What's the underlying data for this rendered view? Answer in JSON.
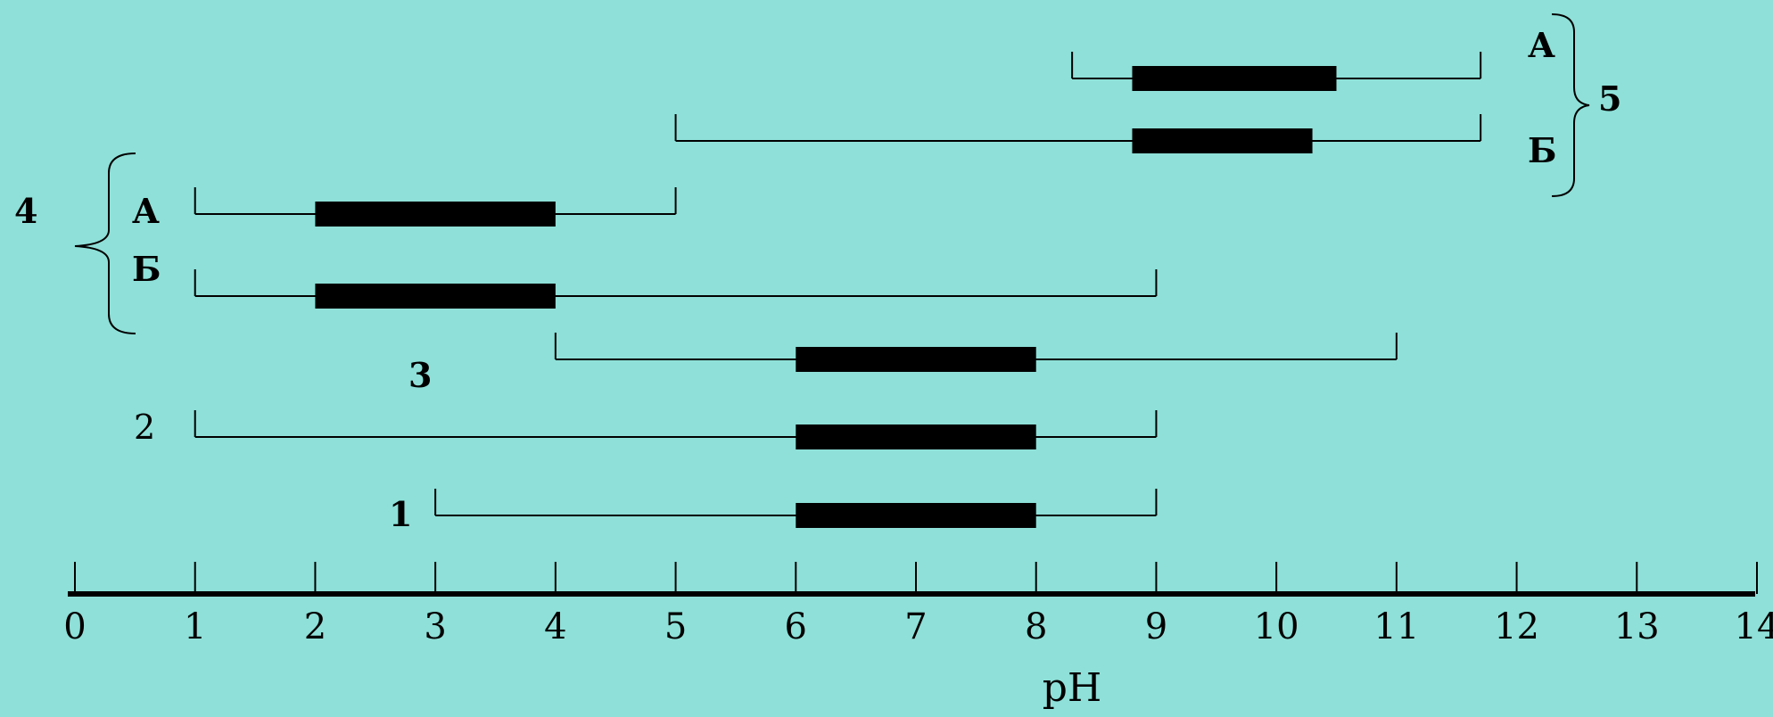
{
  "chart_data": {
    "type": "range",
    "xlabel": "pH",
    "xlim": [
      0,
      14
    ],
    "ticks": [
      "0",
      "1",
      "2",
      "3",
      "4",
      "5",
      "6",
      "7",
      "8",
      "9",
      "10",
      "11",
      "12",
      "13",
      "14"
    ],
    "grid": false,
    "colors": {
      "background": "#8ee0d8",
      "ink": "#000000"
    },
    "groups": [
      {
        "label": "5",
        "bracket": "right"
      },
      {
        "label": "4",
        "bracket": "left"
      }
    ],
    "series": [
      {
        "label": "А",
        "group": "5",
        "range": [
          8.3,
          11.7
        ],
        "optimum": [
          8.8,
          10.5
        ]
      },
      {
        "label": "Б",
        "group": "5",
        "range": [
          5.0,
          11.7
        ],
        "optimum": [
          8.8,
          10.3
        ]
      },
      {
        "label": "А",
        "group": "4",
        "range": [
          1.0,
          5.0
        ],
        "optimum": [
          2.0,
          4.0
        ]
      },
      {
        "label": "Б",
        "group": "4",
        "range": [
          1.0,
          9.0
        ],
        "optimum": [
          2.0,
          4.0
        ]
      },
      {
        "label": "3",
        "group": null,
        "range": [
          4.0,
          11.0
        ],
        "optimum": [
          6.0,
          8.0
        ]
      },
      {
        "label": "2",
        "group": null,
        "range": [
          1.0,
          9.0
        ],
        "optimum": [
          6.0,
          8.0
        ]
      },
      {
        "label": "1",
        "group": null,
        "range": [
          3.0,
          9.0
        ],
        "optimum": [
          6.0,
          8.0
        ]
      }
    ]
  }
}
